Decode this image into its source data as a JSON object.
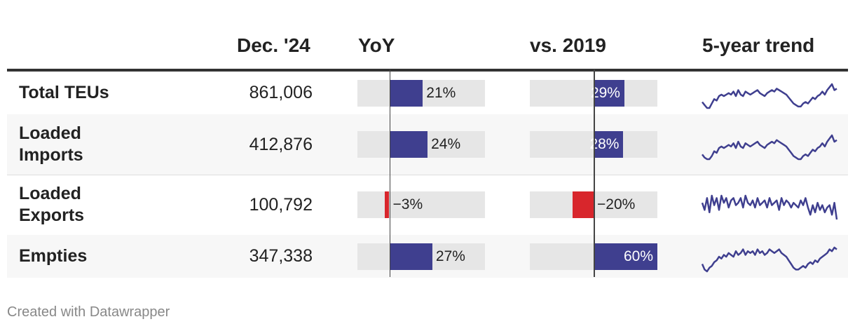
{
  "columns": {
    "current": "Dec. '24",
    "yoy": "YoY",
    "vs2019": "vs. 2019",
    "trend": "5-year trend"
  },
  "colors": {
    "positive": "#3f3f8f",
    "negative": "#d8262c",
    "bar_background": "#e6e6e6",
    "trend_line": "#3f3f8f"
  },
  "footer": "Created with Datawrapper",
  "chart_data": {
    "type": "table",
    "scales": {
      "yoy_domain": [
        -20,
        60
      ],
      "vs2019_domain": [
        -60,
        60
      ]
    },
    "rows": [
      {
        "label": "Total TEUs",
        "value": "861,006",
        "yoy": 21,
        "yoy_label": "21%",
        "vs2019": 29,
        "vs2019_label": "29%",
        "trend": [
          4,
          2,
          0,
          0,
          3,
          6,
          5,
          8,
          9,
          8,
          9,
          10,
          9,
          11,
          8,
          12,
          9,
          8,
          11,
          10,
          9,
          10,
          11,
          12,
          10,
          9,
          8,
          10,
          11,
          12,
          11,
          13,
          12,
          11,
          10,
          9,
          7,
          5,
          3,
          2,
          1,
          1,
          3,
          4,
          3,
          5,
          7,
          6,
          8,
          9,
          11,
          9,
          12,
          14,
          16,
          12,
          13
        ]
      },
      {
        "label": "Loaded Imports",
        "value": "412,876",
        "yoy": 24,
        "yoy_label": "24%",
        "vs2019": 28,
        "vs2019_label": "28%",
        "trend": [
          4,
          2,
          1,
          1,
          3,
          6,
          5,
          8,
          9,
          8,
          9,
          10,
          9,
          11,
          8,
          12,
          9,
          8,
          11,
          10,
          9,
          10,
          11,
          12,
          10,
          9,
          8,
          10,
          11,
          12,
          11,
          13,
          12,
          11,
          10,
          9,
          7,
          5,
          3,
          2,
          1,
          1,
          3,
          4,
          3,
          5,
          7,
          6,
          8,
          9,
          11,
          9,
          12,
          14,
          16,
          12,
          13
        ]
      },
      {
        "label": "Loaded Exports",
        "value": "100,792",
        "yoy": -3,
        "yoy_label": "−3%",
        "vs2019": -20,
        "vs2019_label": "−20%",
        "trend": [
          10,
          7,
          12,
          6,
          13,
          9,
          12,
          7,
          13,
          10,
          12,
          8,
          11,
          12,
          9,
          10,
          12,
          8,
          13,
          10,
          9,
          11,
          8,
          12,
          9,
          10,
          11,
          8,
          12,
          9,
          10,
          11,
          7,
          12,
          9,
          11,
          10,
          8,
          10,
          9,
          8,
          11,
          9,
          12,
          8,
          5,
          9,
          6,
          10,
          7,
          9,
          6,
          8,
          9,
          5,
          10,
          3
        ]
      },
      {
        "label": "Empties",
        "value": "347,338",
        "yoy": 27,
        "yoy_label": "27%",
        "vs2019": 60,
        "vs2019_label": "60%",
        "trend": [
          4,
          1,
          0,
          2,
          3,
          5,
          6,
          8,
          7,
          9,
          8,
          10,
          9,
          8,
          11,
          9,
          10,
          12,
          9,
          11,
          10,
          11,
          9,
          12,
          10,
          11,
          9,
          10,
          12,
          11,
          10,
          11,
          12,
          10,
          9,
          8,
          6,
          4,
          2,
          1,
          1,
          2,
          3,
          2,
          4,
          5,
          4,
          6,
          5,
          7,
          8,
          9,
          10,
          12,
          11,
          13,
          12
        ]
      }
    ]
  }
}
